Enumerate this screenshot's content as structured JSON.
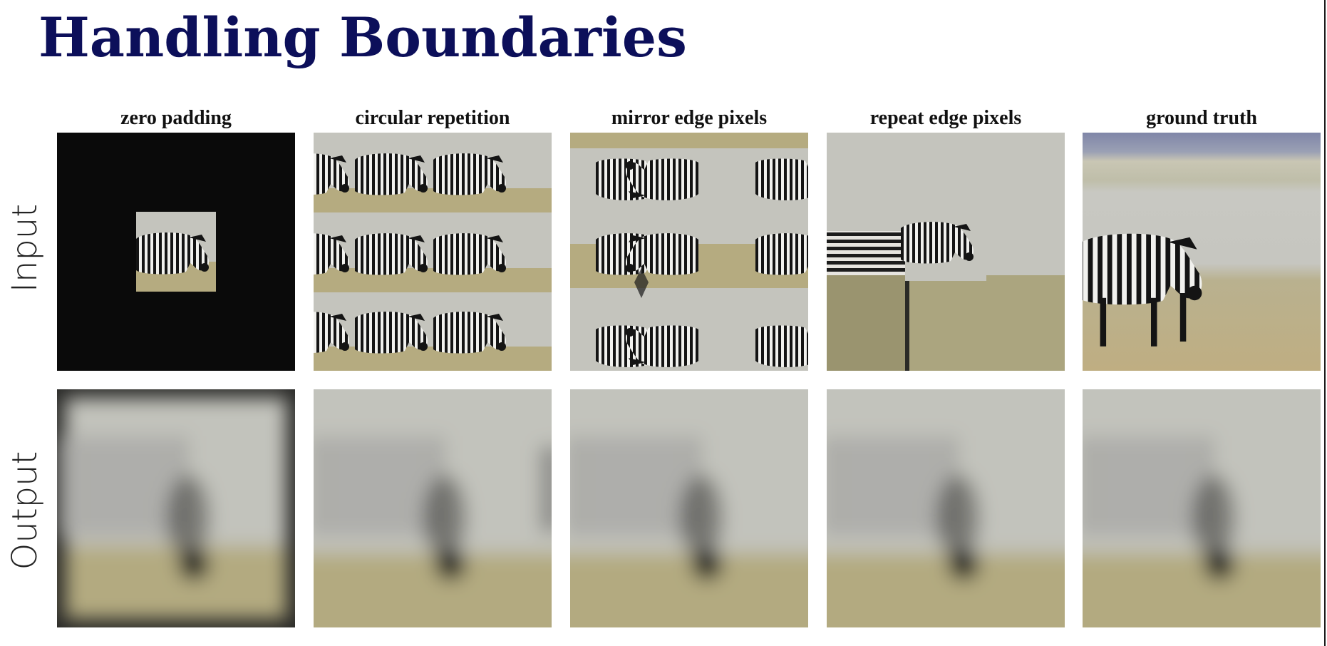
{
  "slide": {
    "title": "Handling Boundaries"
  },
  "columns": [
    {
      "label": "zero padding"
    },
    {
      "label": "circular repetition"
    },
    {
      "label": "mirror edge pixels"
    },
    {
      "label": "repeat edge pixels"
    },
    {
      "label": "ground truth"
    }
  ],
  "rows": [
    {
      "label": "Input"
    },
    {
      "label": "Output"
    }
  ],
  "colors": {
    "title": "#0c0f5a",
    "padding_black": "#0a0a0a",
    "sky_gray": "#c2c3bc",
    "ground_tan": "#b3aa80",
    "stripe_dark": "#141414",
    "stripe_light": "#f1f1ee",
    "horizon_blue": "#7f86a8"
  },
  "icons": {
    "zebra": "zebra-figure"
  }
}
